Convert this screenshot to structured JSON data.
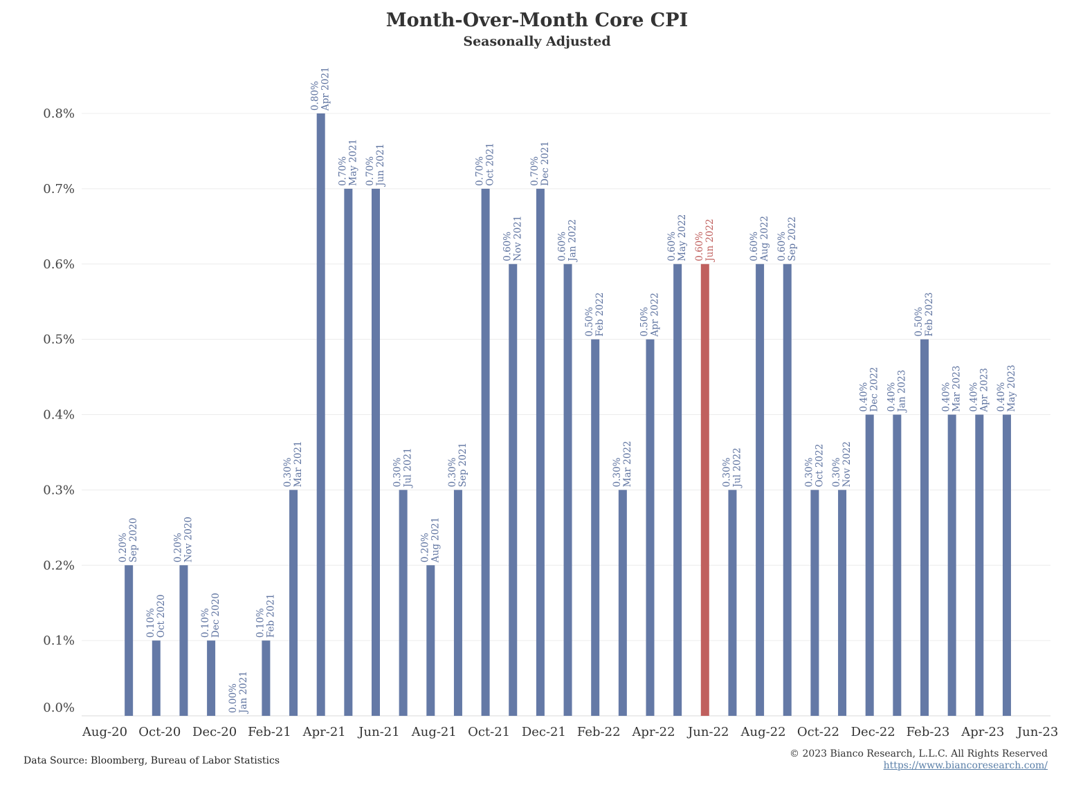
{
  "chart_data": {
    "type": "bar",
    "title": "Month-Over-Month Core CPI",
    "subtitle": "Seasonally Adjusted",
    "x_tick_labels": [
      "Aug-20",
      "Oct-20",
      "Dec-20",
      "Feb-21",
      "Apr-21",
      "Jun-21",
      "Aug-21",
      "Oct-21",
      "Dec-21",
      "Feb-22",
      "Apr-22",
      "Jun-22",
      "Aug-22",
      "Oct-22",
      "Dec-22",
      "Feb-23",
      "Apr-23",
      "Jun-23"
    ],
    "y_tick_labels": [
      "0.0%",
      "0.1%",
      "0.2%",
      "0.3%",
      "0.4%",
      "0.5%",
      "0.6%",
      "0.7%",
      "0.8%"
    ],
    "ylim": [
      0,
      0.8
    ],
    "grid": true,
    "bar_color": "#6479a6",
    "highlight_color": "#c0605e",
    "highlight_category": "Jun 2022",
    "categories": [
      "Sep 2020",
      "Oct 2020",
      "Nov 2020",
      "Dec 2020",
      "Jan 2021",
      "Feb 2021",
      "Mar 2021",
      "Apr 2021",
      "May 2021",
      "Jun 2021",
      "Jul 2021",
      "Aug 2021",
      "Sep 2021",
      "Oct 2021",
      "Nov 2021",
      "Dec 2021",
      "Jan 2022",
      "Feb 2022",
      "Mar 2022",
      "Apr 2022",
      "May 2022",
      "Jun 2022",
      "Jul 2022",
      "Aug 2022",
      "Sep 2022",
      "Oct 2022",
      "Nov 2022",
      "Dec 2022",
      "Jan 2023",
      "Feb 2023",
      "Mar 2023",
      "Apr 2023",
      "May 2023"
    ],
    "values": [
      0.2,
      0.1,
      0.2,
      0.1,
      0.0,
      0.1,
      0.3,
      0.8,
      0.7,
      0.7,
      0.3,
      0.2,
      0.3,
      0.7,
      0.6,
      0.7,
      0.6,
      0.5,
      0.3,
      0.5,
      0.6,
      0.6,
      0.3,
      0.6,
      0.6,
      0.3,
      0.3,
      0.4,
      0.4,
      0.5,
      0.4,
      0.4,
      0.4
    ],
    "value_labels": [
      "0.20%",
      "0.10%",
      "0.20%",
      "0.10%",
      "0.00%",
      "0.10%",
      "0.30%",
      "0.80%",
      "0.70%",
      "0.70%",
      "0.30%",
      "0.20%",
      "0.30%",
      "0.70%",
      "0.60%",
      "0.70%",
      "0.60%",
      "0.50%",
      "0.30%",
      "0.50%",
      "0.60%",
      "0.60%",
      "0.30%",
      "0.60%",
      "0.60%",
      "0.30%",
      "0.30%",
      "0.40%",
      "0.40%",
      "0.50%",
      "0.40%",
      "0.40%",
      "0.40%"
    ]
  },
  "footer": {
    "source": "Data Source: Bloomberg, Bureau of Labor Statistics",
    "copyright": "© 2023 Bianco Research, L.L.C. All Rights Reserved",
    "website": "https://www.biancoresearch.com/"
  }
}
